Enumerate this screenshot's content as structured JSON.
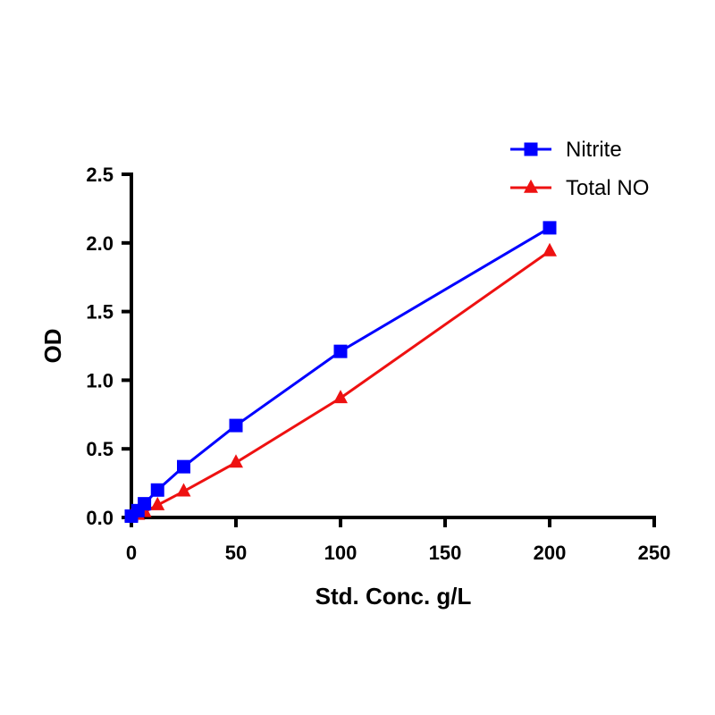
{
  "chart_data": {
    "type": "line",
    "title": "",
    "xlabel": "Std. Conc. g/L",
    "ylabel": "OD",
    "xlim": [
      0,
      250
    ],
    "ylim": [
      0,
      2.5
    ],
    "xticks": [
      "0",
      "50",
      "100",
      "150",
      "200",
      "250"
    ],
    "yticks": [
      "0.0",
      "0.5",
      "1.0",
      "1.5",
      "2.0",
      "2.5"
    ],
    "grid": false,
    "legend_position": "top-right",
    "series": [
      {
        "name": "Nitrite",
        "color": "#0000ff",
        "marker": "square",
        "x": [
          0,
          3.125,
          6.25,
          12.5,
          25,
          50,
          100,
          200
        ],
        "y": [
          0.01,
          0.05,
          0.1,
          0.2,
          0.37,
          0.67,
          1.21,
          2.11
        ]
      },
      {
        "name": "Total NO",
        "color": "#ee1111",
        "marker": "triangle",
        "x": [
          0,
          3.125,
          6.25,
          12.5,
          25,
          50,
          100,
          200
        ],
        "y": [
          0.01,
          0.02,
          0.04,
          0.09,
          0.19,
          0.4,
          0.87,
          1.94
        ]
      }
    ]
  }
}
